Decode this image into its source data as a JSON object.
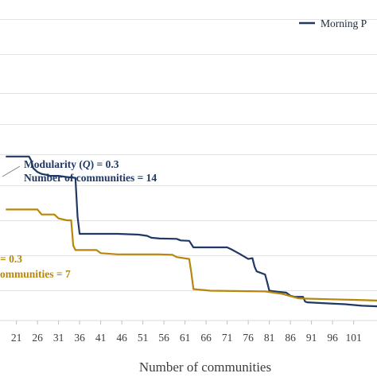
{
  "chart_data": {
    "type": "line",
    "xlabel": "Number of communities",
    "ylabel": "",
    "title": "",
    "x_ticks": [
      "21",
      "26",
      "31",
      "36",
      "41",
      "46",
      "51",
      "56",
      "61",
      "66",
      "71",
      "76",
      "81",
      "86",
      "91",
      "96",
      "101"
    ],
    "xlim": [
      18.5,
      108
    ],
    "ylim": [
      0,
      1
    ],
    "grid": true,
    "legend_position": "top-right",
    "series": [
      {
        "name": "Morning P",
        "color": "#1f3864",
        "points": [
          [
            18.5,
            0.595
          ],
          [
            24,
            0.595
          ],
          [
            24.5,
            0.585
          ],
          [
            25,
            0.565
          ],
          [
            26,
            0.555
          ],
          [
            27,
            0.55
          ],
          [
            28,
            0.548
          ],
          [
            29,
            0.545
          ],
          [
            31,
            0.545
          ],
          [
            33,
            0.542
          ],
          [
            35,
            0.54
          ],
          [
            35.5,
            0.44
          ],
          [
            36,
            0.395
          ],
          [
            40,
            0.395
          ],
          [
            45,
            0.395
          ],
          [
            50,
            0.393
          ],
          [
            52,
            0.39
          ],
          [
            53,
            0.385
          ],
          [
            55,
            0.383
          ],
          [
            59,
            0.382
          ],
          [
            60,
            0.378
          ],
          [
            62,
            0.377
          ],
          [
            63,
            0.36
          ],
          [
            65,
            0.36
          ],
          [
            71,
            0.36
          ],
          [
            72,
            0.355
          ],
          [
            74,
            0.343
          ],
          [
            76,
            0.33
          ],
          [
            77,
            0.332
          ],
          [
            77.5,
            0.31
          ],
          [
            78,
            0.298
          ],
          [
            80,
            0.29
          ],
          [
            80.5,
            0.27
          ],
          [
            81,
            0.248
          ],
          [
            83,
            0.245
          ],
          [
            85,
            0.243
          ],
          [
            86,
            0.235
          ],
          [
            87,
            0.232
          ],
          [
            89,
            0.232
          ],
          [
            89.5,
            0.22
          ],
          [
            90,
            0.218
          ],
          [
            95,
            0.215
          ],
          [
            99,
            0.213
          ],
          [
            100,
            0.212
          ],
          [
            103,
            0.209
          ],
          [
            108,
            0.207
          ]
        ]
      },
      {
        "name": "",
        "color": "#b8860b",
        "points": [
          [
            18.5,
            0.458
          ],
          [
            23,
            0.458
          ],
          [
            26,
            0.458
          ],
          [
            27,
            0.445
          ],
          [
            30,
            0.445
          ],
          [
            31,
            0.435
          ],
          [
            33,
            0.43
          ],
          [
            34,
            0.43
          ],
          [
            34.5,
            0.365
          ],
          [
            35,
            0.353
          ],
          [
            40,
            0.353
          ],
          [
            41,
            0.345
          ],
          [
            45,
            0.342
          ],
          [
            50,
            0.342
          ],
          [
            55,
            0.342
          ],
          [
            58,
            0.341
          ],
          [
            59,
            0.335
          ],
          [
            62,
            0.33
          ],
          [
            62.5,
            0.295
          ],
          [
            63,
            0.252
          ],
          [
            67,
            0.248
          ],
          [
            80,
            0.246
          ],
          [
            84,
            0.24
          ],
          [
            88,
            0.228
          ],
          [
            95,
            0.226
          ],
          [
            102,
            0.224
          ],
          [
            108,
            0.222
          ]
        ]
      }
    ],
    "legend": [
      {
        "label": "Morning P",
        "color": "#1f3864"
      }
    ],
    "annotations": {
      "blue_line1": "Modularity (",
      "blue_q": "Q",
      "blue_line1_end": ") = 0.3",
      "blue_line2": "Number of communities = 14",
      "gold_line1": "= 0.3",
      "gold_line2": "ommunities = 7"
    }
  }
}
